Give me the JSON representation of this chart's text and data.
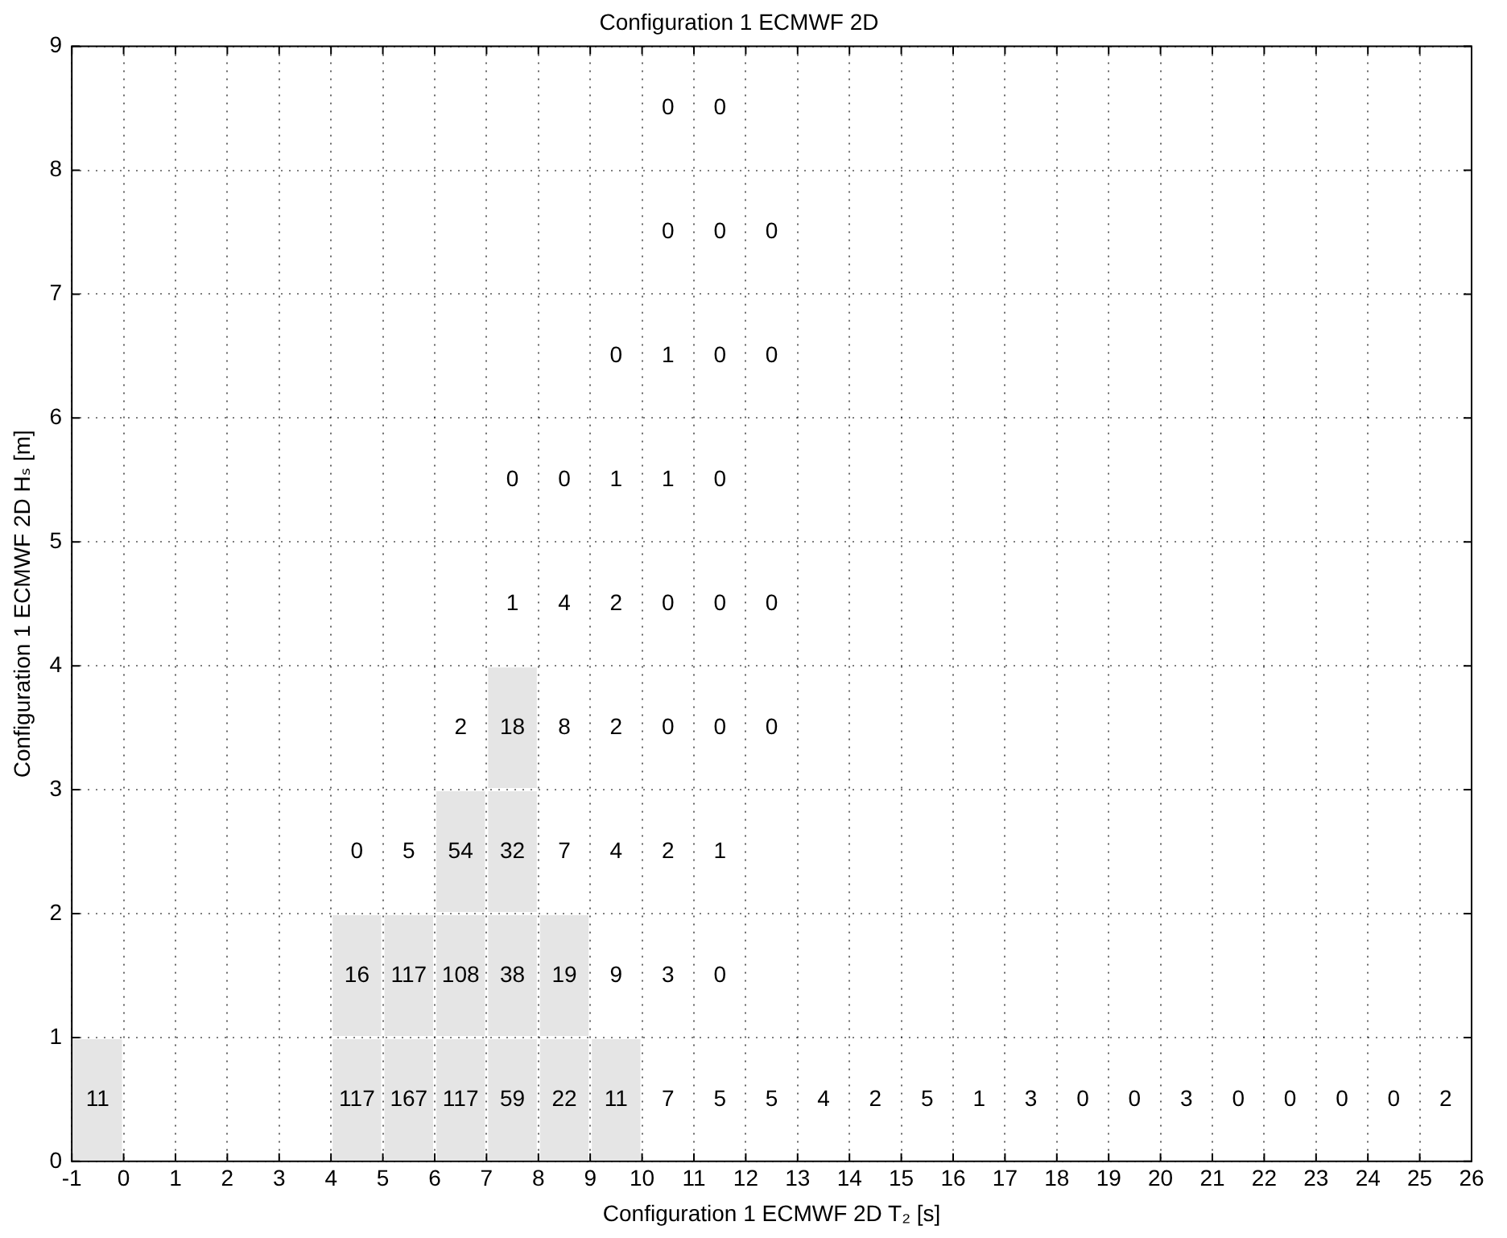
{
  "chart_data": {
    "type": "heatmap",
    "title": "Configuration 1 ECMWF 2D",
    "xlabel": "Configuration 1 ECMWF 2D T₂ [s]",
    "ylabel": "Configuration 1 ECMWF 2D Hₛ [m]",
    "x": [
      -0.5,
      0.5,
      1.5,
      2.5,
      3.5,
      4.5,
      5.5,
      6.5,
      7.5,
      8.5,
      9.5,
      10.5,
      11.5,
      12.5,
      13.5,
      14.5,
      15.5,
      16.5,
      17.5,
      18.5,
      19.5,
      20.5,
      21.5,
      22.5,
      23.5,
      24.5,
      25.5
    ],
    "y": [
      8.5,
      7.5,
      6.5,
      5.5,
      4.5,
      3.5,
      2.5,
      1.5,
      0.5
    ],
    "cells": [
      [
        null,
        null,
        null,
        null,
        null,
        null,
        null,
        null,
        null,
        null,
        null,
        0,
        0,
        null,
        null,
        null,
        null,
        null,
        null,
        null,
        null,
        null,
        null,
        null,
        null,
        null,
        null
      ],
      [
        null,
        null,
        null,
        null,
        null,
        null,
        null,
        null,
        null,
        null,
        null,
        0,
        0,
        0,
        null,
        null,
        null,
        null,
        null,
        null,
        null,
        null,
        null,
        null,
        null,
        null,
        null
      ],
      [
        null,
        null,
        null,
        null,
        null,
        null,
        null,
        null,
        null,
        null,
        0,
        1,
        0,
        0,
        null,
        null,
        null,
        null,
        null,
        null,
        null,
        null,
        null,
        null,
        null,
        null,
        null
      ],
      [
        null,
        null,
        null,
        null,
        null,
        null,
        null,
        null,
        0,
        0,
        1,
        1,
        0,
        null,
        null,
        null,
        null,
        null,
        null,
        null,
        null,
        null,
        null,
        null,
        null,
        null,
        null
      ],
      [
        null,
        null,
        null,
        null,
        null,
        null,
        null,
        null,
        1,
        4,
        2,
        0,
        0,
        0,
        null,
        null,
        null,
        null,
        null,
        null,
        null,
        null,
        null,
        null,
        null,
        null,
        null
      ],
      [
        null,
        null,
        null,
        null,
        null,
        null,
        null,
        2,
        18,
        8,
        2,
        0,
        0,
        0,
        null,
        null,
        null,
        null,
        null,
        null,
        null,
        null,
        null,
        null,
        null,
        null,
        null
      ],
      [
        null,
        null,
        null,
        null,
        null,
        0,
        5,
        54,
        32,
        7,
        4,
        2,
        1,
        null,
        null,
        null,
        null,
        null,
        null,
        null,
        null,
        null,
        null,
        null,
        null,
        null,
        null
      ],
      [
        null,
        null,
        null,
        null,
        null,
        16,
        117,
        108,
        38,
        19,
        9,
        3,
        0,
        null,
        null,
        null,
        null,
        null,
        null,
        null,
        null,
        null,
        null,
        null,
        null,
        null,
        null
      ],
      [
        11,
        null,
        null,
        null,
        null,
        117,
        167,
        117,
        59,
        22,
        11,
        7,
        5,
        5,
        4,
        2,
        5,
        1,
        3,
        0,
        0,
        3,
        0,
        0,
        0,
        0,
        2
      ]
    ],
    "colors": [
      [
        null,
        null,
        null,
        null,
        null,
        null,
        null,
        null,
        null,
        null,
        null,
        null,
        null,
        null,
        null,
        null,
        null,
        null,
        null,
        null,
        null,
        null,
        null,
        null,
        null,
        null,
        null
      ],
      [
        null,
        null,
        null,
        null,
        null,
        null,
        null,
        null,
        null,
        null,
        null,
        null,
        null,
        null,
        null,
        null,
        null,
        null,
        null,
        null,
        null,
        null,
        null,
        null,
        null,
        null,
        null
      ],
      [
        null,
        null,
        null,
        null,
        null,
        null,
        null,
        null,
        null,
        null,
        null,
        null,
        null,
        null,
        null,
        null,
        null,
        null,
        null,
        null,
        null,
        null,
        null,
        null,
        null,
        null,
        null
      ],
      [
        null,
        null,
        null,
        null,
        null,
        null,
        null,
        null,
        null,
        null,
        null,
        null,
        null,
        null,
        null,
        null,
        null,
        null,
        null,
        null,
        null,
        null,
        null,
        null,
        null,
        null,
        null
      ],
      [
        null,
        null,
        null,
        null,
        null,
        null,
        null,
        null,
        null,
        null,
        null,
        null,
        null,
        null,
        null,
        null,
        null,
        null,
        null,
        null,
        null,
        null,
        null,
        null,
        null,
        null,
        null
      ],
      [
        null,
        null,
        null,
        null,
        null,
        null,
        null,
        null,
        "#e5e5e5",
        null,
        null,
        null,
        null,
        null,
        null,
        null,
        null,
        null,
        null,
        null,
        null,
        null,
        null,
        null,
        null,
        null,
        null
      ],
      [
        null,
        null,
        null,
        null,
        null,
        null,
        null,
        "#e5e5e5",
        "#e5e5e5",
        null,
        null,
        null,
        null,
        null,
        null,
        null,
        null,
        null,
        null,
        null,
        null,
        null,
        null,
        null,
        null,
        null,
        null
      ],
      [
        null,
        null,
        null,
        null,
        null,
        "#e5e5e5",
        "#e5e5e5",
        "#e5e5e5",
        "#e5e5e5",
        "#e5e5e5",
        null,
        null,
        null,
        null,
        null,
        null,
        null,
        null,
        null,
        null,
        null,
        null,
        null,
        null,
        null,
        null,
        null
      ],
      [
        "#e5e5e5",
        null,
        null,
        null,
        null,
        "#e5e5e5",
        "#e5e5e5",
        "#e5e5e5",
        "#e5e5e5",
        "#e5e5e5",
        "#e5e5e5",
        null,
        null,
        null,
        null,
        null,
        null,
        null,
        null,
        null,
        null,
        null,
        null,
        null,
        null,
        null,
        null
      ]
    ],
    "xlim": [
      -1,
      26
    ],
    "xticks": [
      -1,
      0,
      1,
      2,
      3,
      4,
      5,
      6,
      7,
      8,
      9,
      10,
      11,
      12,
      13,
      14,
      15,
      16,
      17,
      18,
      19,
      20,
      21,
      22,
      23,
      24,
      25,
      26
    ],
    "ylim": [
      0,
      9
    ],
    "yticks": [
      0,
      1,
      2,
      3,
      4,
      5,
      6,
      7,
      8,
      9
    ],
    "grid": true,
    "data_labels": true
  }
}
